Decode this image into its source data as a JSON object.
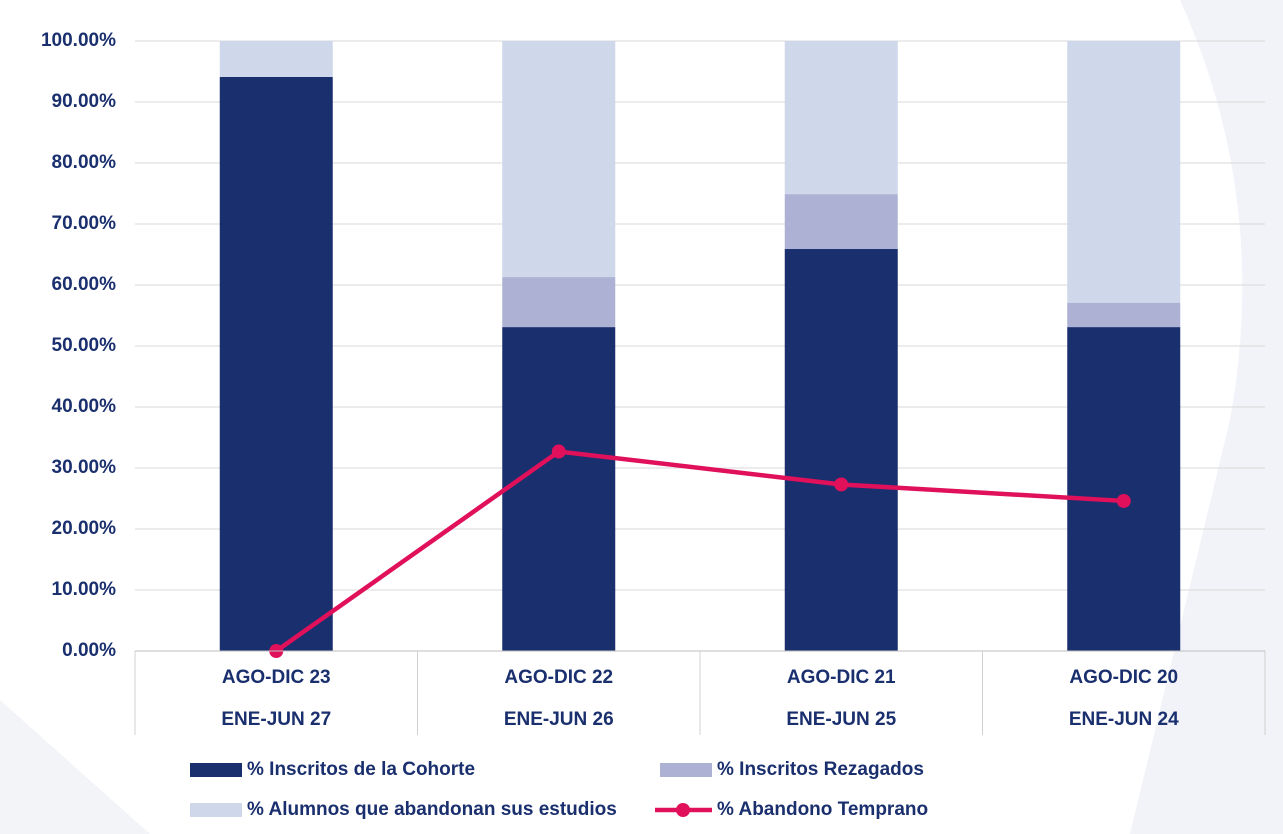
{
  "chart_data": {
    "type": "bar",
    "stacked": true,
    "categories": [
      [
        "AGO-DIC 23",
        "ENE-JUN 27"
      ],
      [
        "AGO-DIC 22",
        "ENE-JUN 26"
      ],
      [
        "AGO-DIC 21",
        "ENE-JUN 25"
      ],
      [
        "AGO-DIC 20",
        "ENE-JUN 24"
      ]
    ],
    "series": [
      {
        "name": "% Inscritos de la Cohorte",
        "color": "#1a2f6e",
        "type": "bar",
        "values": [
          94.1,
          53.1,
          65.9,
          53.1
        ]
      },
      {
        "name": "% Inscritos Rezagados",
        "color": "#adb1d3",
        "type": "bar",
        "values": [
          0,
          8.2,
          9.0,
          4.0
        ]
      },
      {
        "name": "% Alumnos que abandonan sus estudios",
        "color": "#cfd7ea",
        "type": "bar",
        "values": [
          5.9,
          38.7,
          25.1,
          42.9
        ]
      },
      {
        "name": "% Abandono Temprano",
        "color": "#e0105a",
        "type": "line",
        "values": [
          0,
          32.7,
          27.3,
          24.6
        ]
      }
    ],
    "ylim": [
      0,
      100
    ],
    "yticks": [
      {
        "value": 0,
        "label": "0.00%"
      },
      {
        "value": 10,
        "label": "10.00%"
      },
      {
        "value": 20,
        "label": "20.00%"
      },
      {
        "value": 30,
        "label": "30.00%"
      },
      {
        "value": 40,
        "label": "40.00%"
      },
      {
        "value": 50,
        "label": "50.00%"
      },
      {
        "value": 60,
        "label": "60.00%"
      },
      {
        "value": 70,
        "label": "70.00%"
      },
      {
        "value": 80,
        "label": "80.00%"
      },
      {
        "value": 90,
        "label": "90.00%"
      },
      {
        "value": 100,
        "label": "100.00%"
      }
    ],
    "grid": true,
    "legend": "bottom"
  }
}
